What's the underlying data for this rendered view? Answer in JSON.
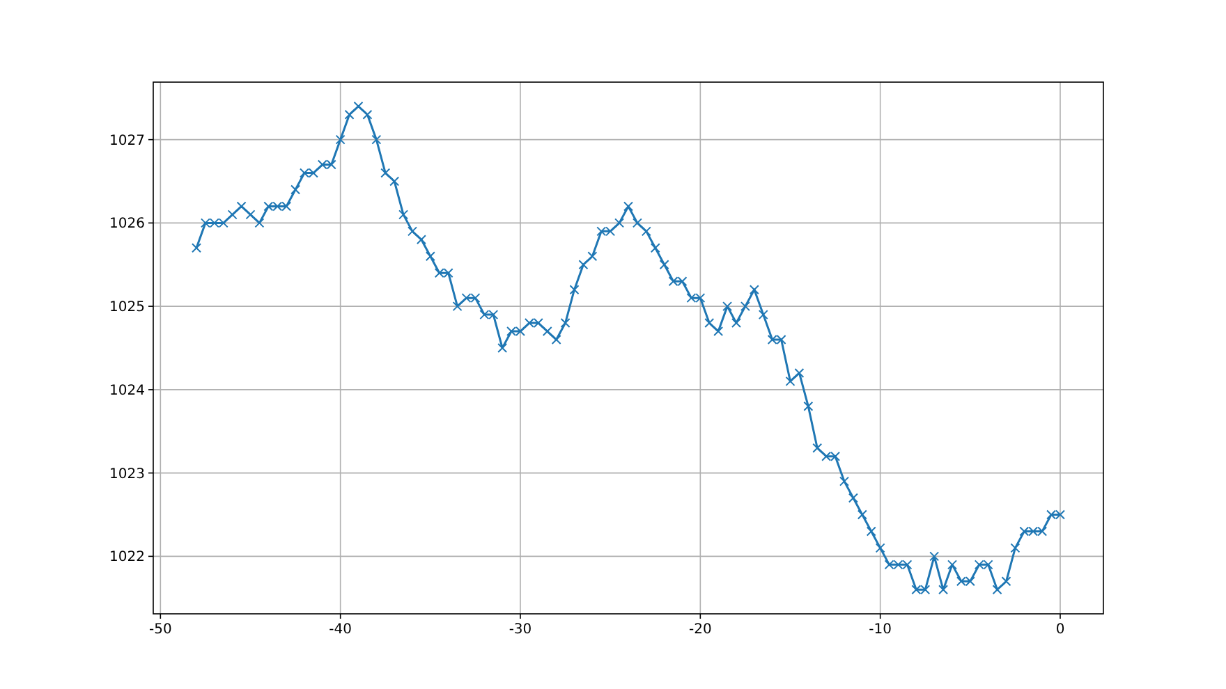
{
  "chart_data": {
    "type": "line",
    "x": [
      -48,
      -47.5,
      -47,
      -46.5,
      -46,
      -45.5,
      -45,
      -44.5,
      -44,
      -43.5,
      -43,
      -42.5,
      -42,
      -41.5,
      -41,
      -40.5,
      -40,
      -39.5,
      -39,
      -38.5,
      -38,
      -37.5,
      -37,
      -36.5,
      -36,
      -35.5,
      -35,
      -34.5,
      -34,
      -33.5,
      -33,
      -32.5,
      -32,
      -31.5,
      -31,
      -30.5,
      -30,
      -29.5,
      -29,
      -28.5,
      -28,
      -27.5,
      -27,
      -26.5,
      -26,
      -25.5,
      -25,
      -24.5,
      -24,
      -23.5,
      -23,
      -22.5,
      -22,
      -21.5,
      -21,
      -20.5,
      -20,
      -19.5,
      -19,
      -18.5,
      -18,
      -17.5,
      -17,
      -16.5,
      -16,
      -15.5,
      -15,
      -14.5,
      -14,
      -13.5,
      -13,
      -12.5,
      -12,
      -11.5,
      -11,
      -10.5,
      -10,
      -9.5,
      -9,
      -8.5,
      -8,
      -7.5,
      -7,
      -6.5,
      -6,
      -5.5,
      -5,
      -4.5,
      -4,
      -3.5,
      -3,
      -2.5,
      -2,
      -1.5,
      -1,
      -0.5,
      0
    ],
    "series": [
      {
        "color": "#1f77b4",
        "values": [
          1025.7,
          1026.0,
          1026.0,
          1026.0,
          1026.1,
          1026.2,
          1026.1,
          1026.0,
          1026.2,
          1026.2,
          1026.2,
          1026.4,
          1026.6,
          1026.6,
          1026.7,
          1026.7,
          1027.0,
          1027.3,
          1027.4,
          1027.3,
          1027.0,
          1026.6,
          1026.5,
          1026.1,
          1025.9,
          1025.8,
          1025.6,
          1025.4,
          1025.4,
          1025.0,
          1025.1,
          1025.1,
          1024.9,
          1024.9,
          1024.5,
          1024.7,
          1024.7,
          1024.8,
          1024.8,
          1024.7,
          1024.6,
          1024.8,
          1025.2,
          1025.5,
          1025.6,
          1025.9,
          1025.9,
          1026.0,
          1026.2,
          1026.0,
          1025.9,
          1025.7,
          1025.5,
          1025.3,
          1025.3,
          1025.1,
          1025.1,
          1024.8,
          1024.7,
          1025.0,
          1024.8,
          1025.0,
          1025.2,
          1024.9,
          1024.6,
          1024.6,
          1024.1,
          1024.2,
          1023.8,
          1023.3,
          1023.2,
          1023.2,
          1022.9,
          1022.7,
          1022.5,
          1022.3,
          1022.1,
          1021.9,
          1021.9,
          1021.9,
          1021.6,
          1021.6,
          1022.0,
          1021.6,
          1021.9,
          1021.7,
          1021.7,
          1021.9,
          1021.9,
          1021.6,
          1021.7,
          1022.1,
          1022.3,
          1022.3,
          1022.3,
          1022.5,
          1022.5
        ]
      }
    ],
    "xlim": [
      -50.4,
      2.4
    ],
    "ylim": [
      1021.31,
      1027.69
    ],
    "xticks": [
      -50,
      -40,
      -30,
      -20,
      -10,
      0
    ],
    "yticks": [
      1022,
      1023,
      1024,
      1025,
      1026,
      1027
    ],
    "grid": true,
    "marker": "cross",
    "line_style": "solid"
  }
}
